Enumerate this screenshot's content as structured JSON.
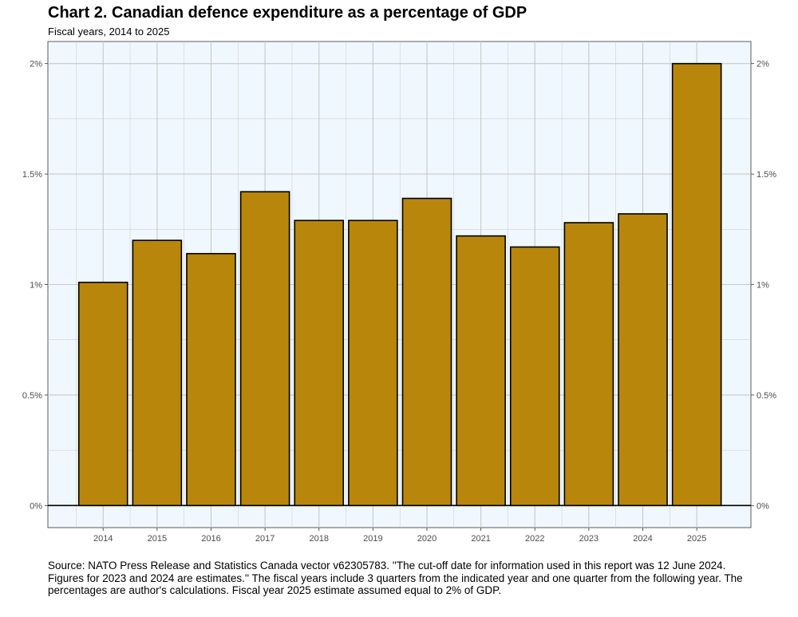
{
  "header": {
    "title": "Chart 2. Canadian defence expenditure as a percentage of GDP",
    "subtitle": "Fiscal years, 2014 to 2025"
  },
  "chart_data": {
    "type": "bar",
    "title": "Chart 2. Canadian defence expenditure as a percentage of GDP",
    "subtitle": "Fiscal years, 2014 to 2025",
    "xlabel": "",
    "ylabel": "",
    "categories": [
      "2014",
      "2015",
      "2016",
      "2017",
      "2018",
      "2019",
      "2020",
      "2021",
      "2022",
      "2023",
      "2024",
      "2025"
    ],
    "values": [
      1.01,
      1.2,
      1.14,
      1.42,
      1.29,
      1.29,
      1.39,
      1.22,
      1.17,
      1.28,
      1.32,
      2.0
    ],
    "ylim": [
      -0.1,
      2.1
    ],
    "yticks": [
      0,
      0.5,
      1,
      1.5,
      2
    ],
    "ytick_labels": [
      "0%",
      "0.5%",
      "1%",
      "1.5%",
      "2%"
    ],
    "grid": true,
    "secondary_y_axis": true,
    "legend": "none"
  },
  "colors": {
    "bar_fill": "#B8860B",
    "bar_stroke": "#000000",
    "panel_background": "#F0F8FF",
    "grid": "#C8C8C8",
    "axis_text": "#4D4D4D"
  },
  "footer": {
    "source": "Source: NATO Press Release and Statistics Canada vector v62305783. ''The cut-off date for information used in this report was 12 June 2024. Figures for 2023 and 2024 are estimates.'' The fiscal years include 3 quarters from the indicated year and one quarter from the following year. The percentages are author's calculations. Fiscal year 2025 estimate assumed equal to 2% of GDP."
  }
}
